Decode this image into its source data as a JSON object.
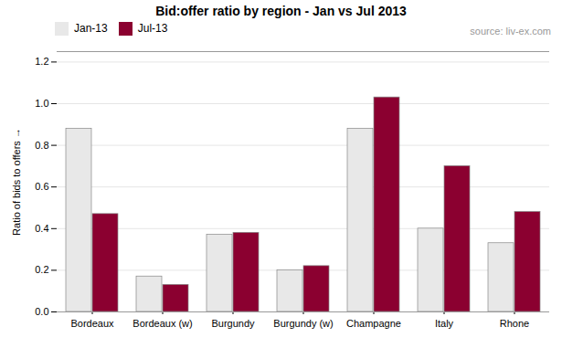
{
  "chart_data": {
    "type": "bar",
    "title": "Bid:offer ratio by region - Jan vs Jul 2013",
    "y_label": "Ratio of bids to offers",
    "annotations": [
      "source: liv-ex.com"
    ],
    "categories": [
      "Bordeaux",
      "Bordeaux (w)",
      "Burgundy",
      "Burgundy (w)",
      "Champagne",
      "Italy",
      "Rhone"
    ],
    "series": [
      {
        "name": "Jan-13",
        "color": "#e8e8e8",
        "values": [
          0.88,
          0.17,
          0.37,
          0.2,
          0.88,
          0.4,
          0.33
        ]
      },
      {
        "name": "Jul-13",
        "color": "#8b0030",
        "values": [
          0.47,
          0.13,
          0.38,
          0.22,
          1.03,
          0.7,
          0.48
        ]
      }
    ],
    "ylim": [
      0.0,
      1.25
    ],
    "yticks": [
      {
        "value": 0.0,
        "label": "0.0"
      },
      0.2,
      0.4,
      0.6,
      0.8,
      {
        "value": 1.0,
        "label": "1.0"
      },
      1.2
    ],
    "grid": true,
    "legend": "upper left"
  }
}
